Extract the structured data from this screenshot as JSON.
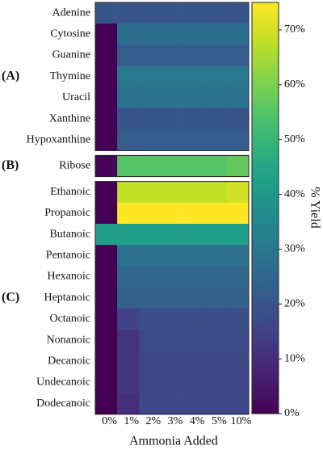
{
  "chart_data": {
    "type": "heatmap",
    "xlabel": "Ammonia Added",
    "columns": [
      "0%",
      "1%",
      "2%",
      "3%",
      "4%",
      "5%",
      "10%"
    ],
    "colormap": "viridis",
    "panels": [
      {
        "label": "(A)",
        "rows": [
          "Adenine",
          "Cytosine",
          "Guanine",
          "Thymine",
          "Uracil",
          "Xanthine",
          "Hypoxanthine"
        ],
        "values": [
          [
            20,
            20,
            20,
            20,
            20,
            20,
            20
          ],
          [
            0,
            27,
            27,
            27,
            27,
            27,
            27
          ],
          [
            0,
            22,
            22,
            22,
            22,
            22,
            22
          ],
          [
            0,
            30,
            30,
            30,
            30,
            30,
            30
          ],
          [
            0,
            28,
            28,
            28,
            28,
            28,
            28
          ],
          [
            0,
            20,
            20,
            20,
            20,
            20,
            20
          ],
          [
            0,
            22,
            22,
            22,
            22,
            22,
            22
          ]
        ]
      },
      {
        "label": "(B)",
        "rows": [
          "Ribose"
        ],
        "values": [
          [
            1,
            55,
            55,
            55,
            55,
            55,
            57
          ]
        ]
      },
      {
        "label": "(C)",
        "rows": [
          "Ethanoic",
          "Propanoic",
          "Butanoic",
          "Pentanoic",
          "Hexanoic",
          "Heptanoic",
          "Octanoic",
          "Nonanoic",
          "Decanoic",
          "Undecanoic",
          "Dodecanoic"
        ],
        "values": [
          [
            0,
            68,
            68,
            68,
            68,
            68,
            70
          ],
          [
            0,
            75,
            75,
            75,
            75,
            75,
            75
          ],
          [
            42,
            42,
            42,
            42,
            42,
            42,
            42
          ],
          [
            0,
            28,
            28,
            28,
            28,
            28,
            28
          ],
          [
            0,
            25,
            25,
            25,
            25,
            25,
            25
          ],
          [
            0,
            23,
            23,
            23,
            23,
            23,
            23
          ],
          [
            0,
            15,
            18,
            18,
            18,
            18,
            18
          ],
          [
            0,
            12,
            17,
            17,
            17,
            17,
            17
          ],
          [
            0,
            12,
            16,
            16,
            16,
            16,
            16
          ],
          [
            0,
            12,
            16,
            16,
            16,
            16,
            16
          ],
          [
            0,
            10,
            16,
            16,
            16,
            16,
            16
          ]
        ]
      }
    ],
    "colorbar": {
      "label": "% Yield",
      "lim": [
        0,
        75
      ],
      "ticks": [
        {
          "value": 0,
          "label": "0%"
        },
        {
          "value": 10,
          "label": "10%"
        },
        {
          "value": 20,
          "label": "20%"
        },
        {
          "value": 30,
          "label": "30%"
        },
        {
          "value": 40,
          "label": "40%"
        },
        {
          "value": 50,
          "label": "50%"
        },
        {
          "value": 60,
          "label": "60%"
        },
        {
          "value": 70,
          "label": "70%"
        }
      ]
    }
  }
}
